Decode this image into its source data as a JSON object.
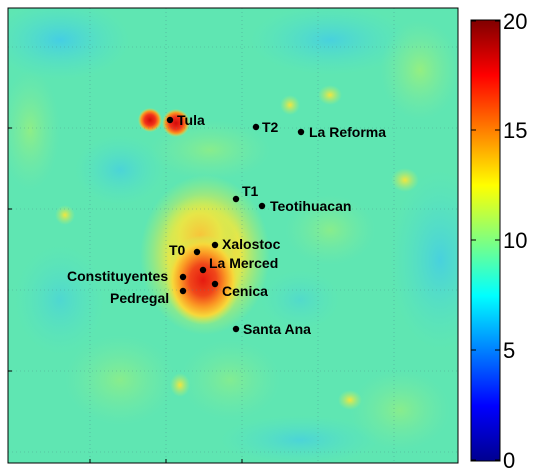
{
  "colorbar": {
    "tick_labels": [
      "0",
      "5",
      "10",
      "15",
      "20"
    ],
    "min": 0,
    "max": 20
  },
  "colors": {
    "background_field": "#5fe6b2",
    "scale_low": "#00008f",
    "scale_high": "#800000"
  },
  "sites": [
    {
      "name": "Tula"
    },
    {
      "name": "T2"
    },
    {
      "name": "La Reforma"
    },
    {
      "name": "T1"
    },
    {
      "name": "Teotihuacan"
    },
    {
      "name": "Xalostoc"
    },
    {
      "name": "T0"
    },
    {
      "name": "La Merced"
    },
    {
      "name": "Constituyentes"
    },
    {
      "name": "Cenica"
    },
    {
      "name": "Pedregal"
    },
    {
      "name": "Santa Ana"
    }
  ]
}
